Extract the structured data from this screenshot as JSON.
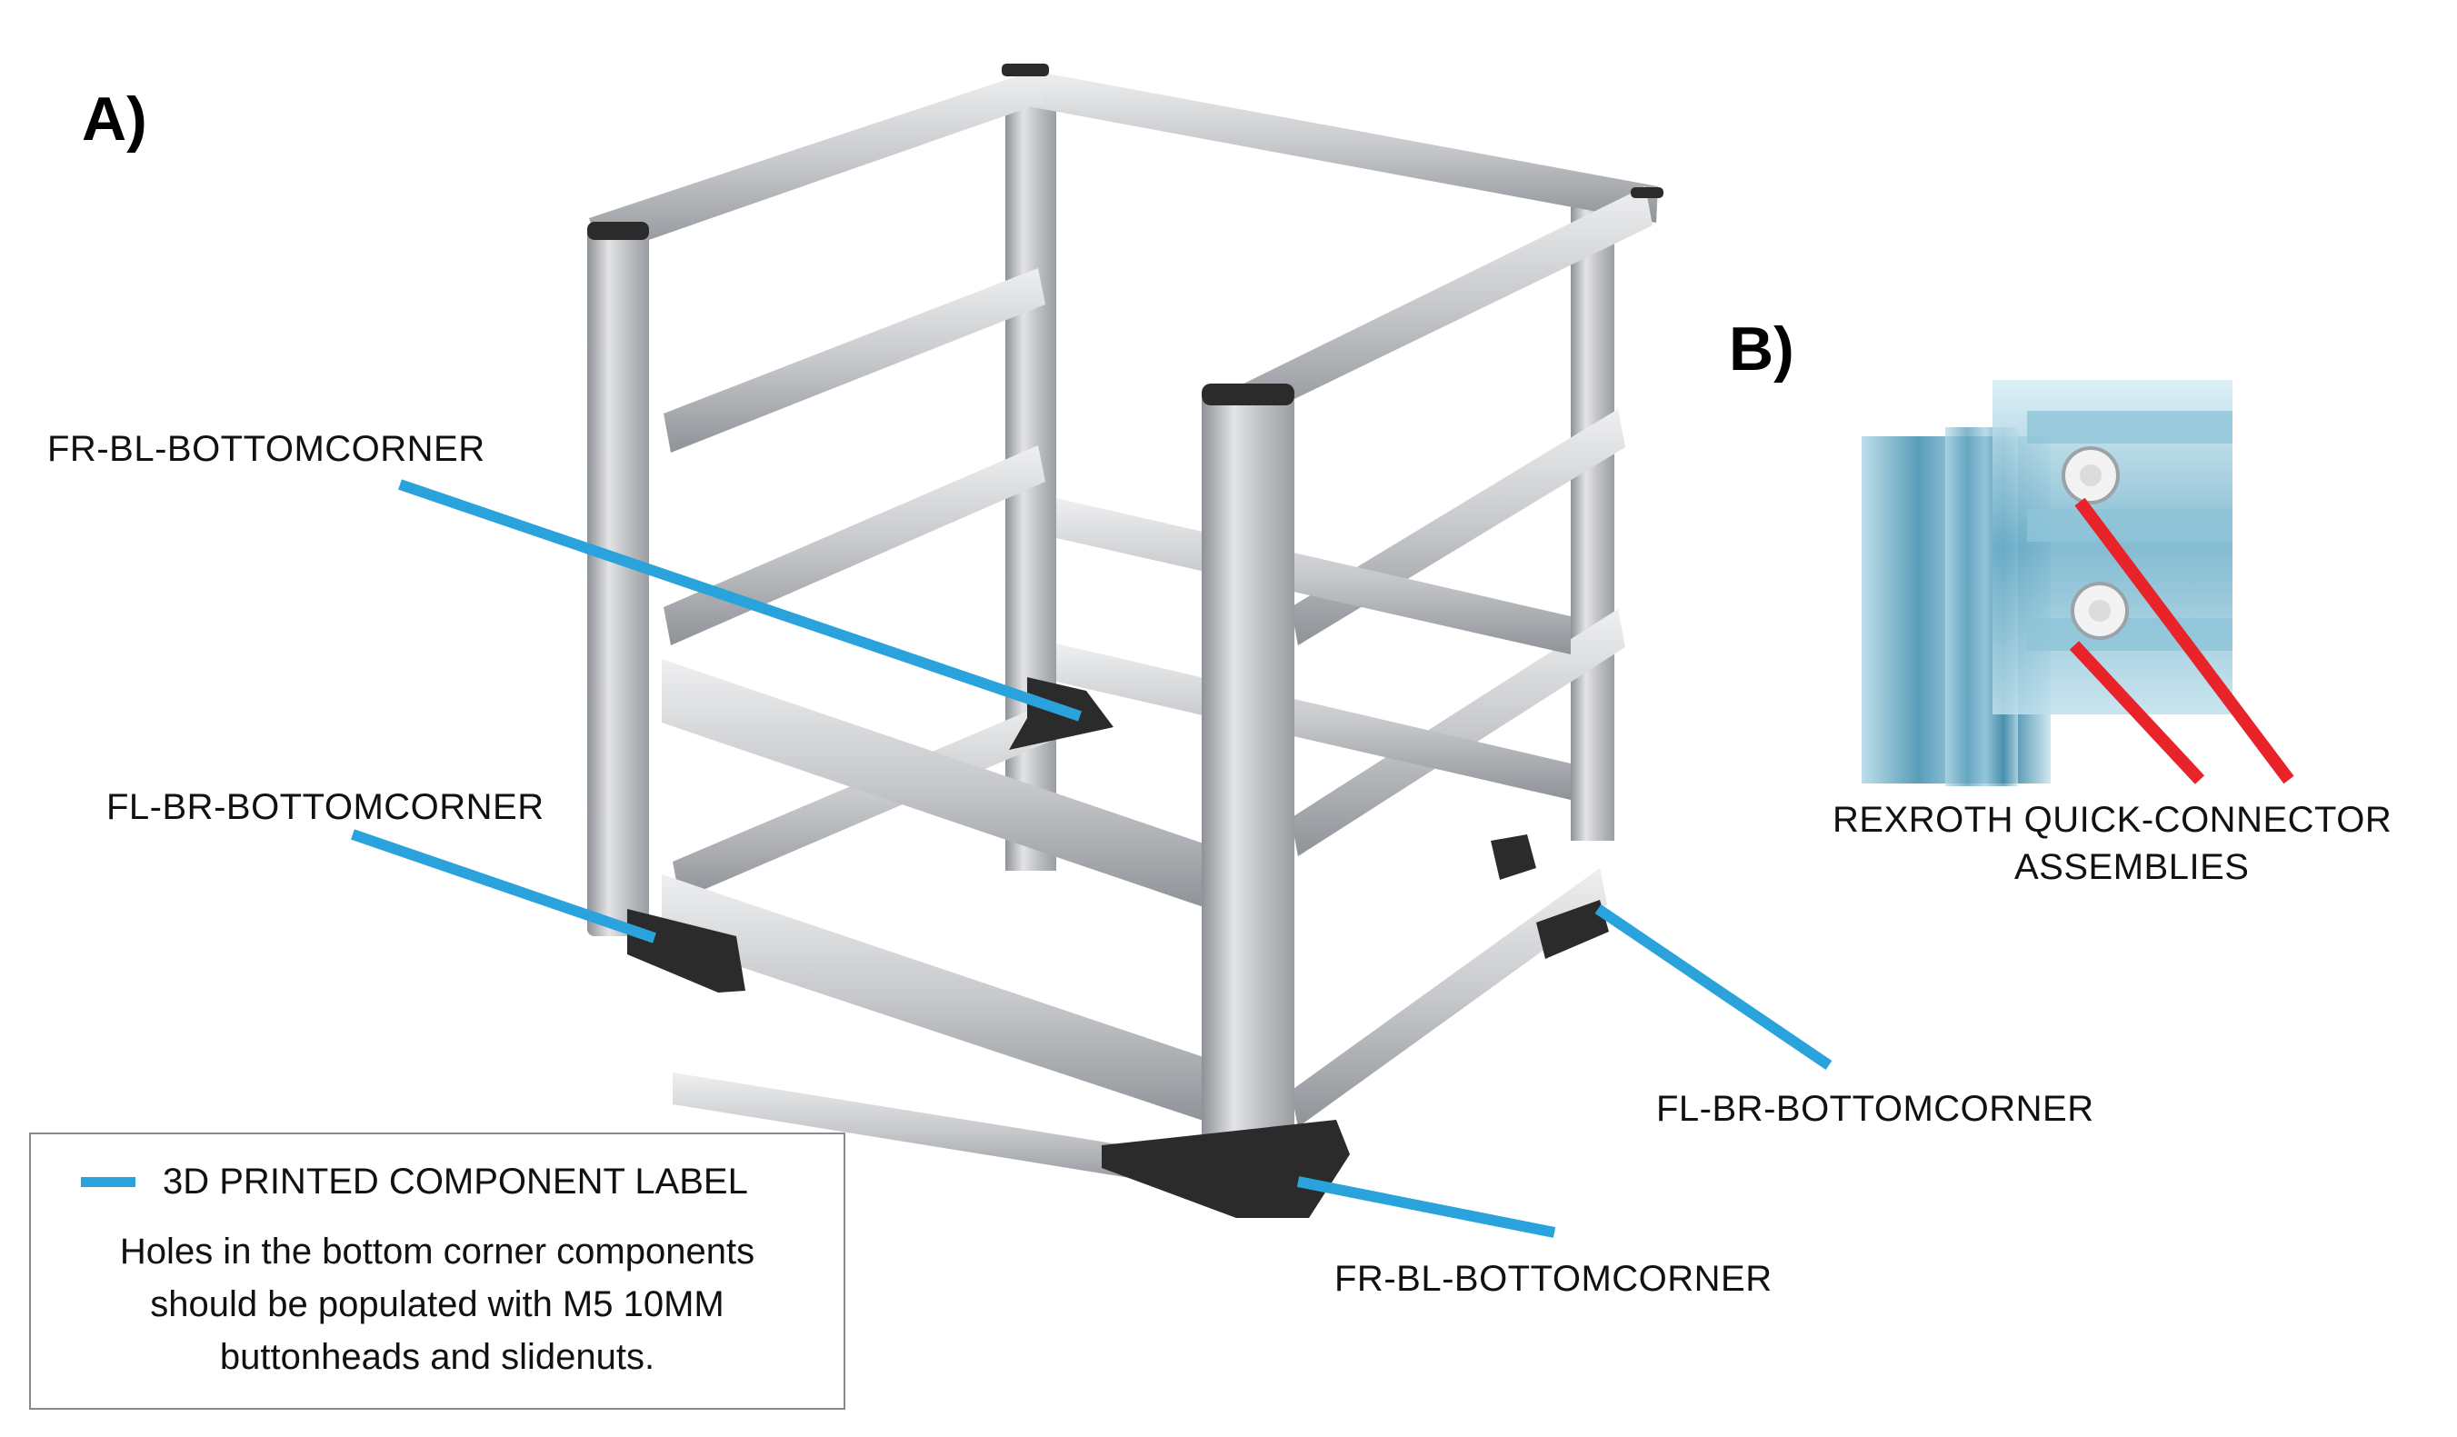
{
  "panels": {
    "a_label": "A)",
    "b_label": "B)"
  },
  "callouts": {
    "fr_bl_top": "FR-BL-BOTTOMCORNER",
    "fl_br_left": "FL-BR-BOTTOMCORNER",
    "fl_br_right": "FL-BR-BOTTOMCORNER",
    "fr_bl_bottom": "FR-BL-BOTTOMCORNER",
    "rexroth_line1": "REXROTH QUICK-CONNECTOR",
    "rexroth_line2": "ASSEMBLIES"
  },
  "legend": {
    "title": "3D PRINTED COMPONENT LABEL",
    "note_lines": [
      "Holes in the bottom corner components",
      "should be populated with M5 10MM",
      "buttonheads and slidenuts."
    ]
  },
  "colors": {
    "component_label": "#2aa3dc",
    "connector_label": "#e8232a",
    "extrusion": "#c4c6c9",
    "printed_part": "#2b2b2b"
  }
}
